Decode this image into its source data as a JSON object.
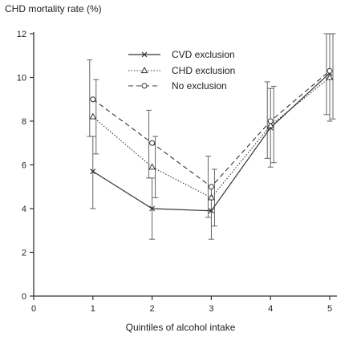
{
  "chart_data": {
    "type": "line",
    "title": "",
    "ylabel": "CHD mortality rate (%)",
    "xlabel": "Quintiles of alcohol intake",
    "xlim": [
      0,
      5
    ],
    "ylim": [
      0,
      12
    ],
    "x_ticks": [
      0,
      1,
      2,
      3,
      4,
      5
    ],
    "y_ticks": [
      0,
      2,
      4,
      6,
      8,
      10,
      12
    ],
    "grid": false,
    "legend_position": "top-center",
    "x": [
      1,
      2,
      3,
      4,
      5
    ],
    "series": [
      {
        "name": "CVD exclusion",
        "style": "solid",
        "marker": "x",
        "values": [
          5.7,
          4.0,
          3.9,
          7.7,
          10.2
        ],
        "err_low": [
          4.0,
          2.6,
          2.6,
          5.9,
          8.0
        ],
        "err_high": [
          7.3,
          5.4,
          5.0,
          9.5,
          12.0
        ]
      },
      {
        "name": "CHD exclusion",
        "style": "dotted",
        "marker": "triangle",
        "values": [
          8.2,
          5.9,
          4.5,
          7.8,
          10.0
        ],
        "err_low": [
          6.5,
          4.5,
          3.2,
          6.1,
          8.1
        ],
        "err_high": [
          9.9,
          7.3,
          5.8,
          9.6,
          12.0
        ]
      },
      {
        "name": "No exclusion",
        "style": "dashed",
        "marker": "circle",
        "values": [
          9.0,
          7.0,
          5.0,
          8.0,
          10.3
        ],
        "err_low": [
          7.3,
          5.4,
          3.6,
          6.3,
          8.3
        ],
        "err_high": [
          10.8,
          8.5,
          6.4,
          9.8,
          12.0
        ]
      }
    ]
  }
}
